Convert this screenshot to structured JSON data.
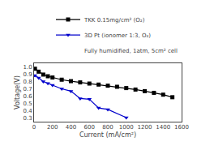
{
  "chart_data": {
    "type": "line",
    "x_label": "Current (mA/cm²)",
    "y_label": "Voltage(V)",
    "series": [
      {
        "name": "TKK 0.15mg/cm² (O₂)",
        "color": "#000000",
        "marker": "square",
        "x": [
          10,
          50,
          100,
          150,
          200,
          300,
          400,
          500,
          600,
          700,
          800,
          900,
          1000,
          1100,
          1200,
          1300,
          1400,
          1500
        ],
        "values": [
          0.975,
          0.935,
          0.895,
          0.872,
          0.855,
          0.825,
          0.805,
          0.788,
          0.772,
          0.758,
          0.743,
          0.728,
          0.71,
          0.69,
          0.668,
          0.645,
          0.62,
          0.585
        ]
      },
      {
        "name": "3D Pt (ionomer 1:3, O₂)",
        "color": "#0000cc",
        "marker": "triangle-down",
        "x": [
          10,
          50,
          100,
          150,
          200,
          300,
          400,
          500,
          600,
          700,
          800,
          1000
        ],
        "values": [
          0.882,
          0.85,
          0.8,
          0.775,
          0.75,
          0.7,
          0.668,
          0.568,
          0.558,
          0.438,
          0.418,
          0.305
        ]
      }
    ],
    "annotations": [
      "Fully humidified, 1atm, 5cm² cell"
    ],
    "xlim": [
      0,
      1600
    ],
    "ylim": [
      0.25,
      1.05
    ],
    "xticks": [
      0,
      200,
      400,
      600,
      800,
      1000,
      1200,
      1400,
      1600
    ],
    "yticks": [
      0.3,
      0.4,
      0.5,
      0.6,
      0.7,
      0.8,
      0.9,
      {
        "value": 1,
        "label": "1.0"
      }
    ],
    "grid": false,
    "legend": "upper right"
  }
}
